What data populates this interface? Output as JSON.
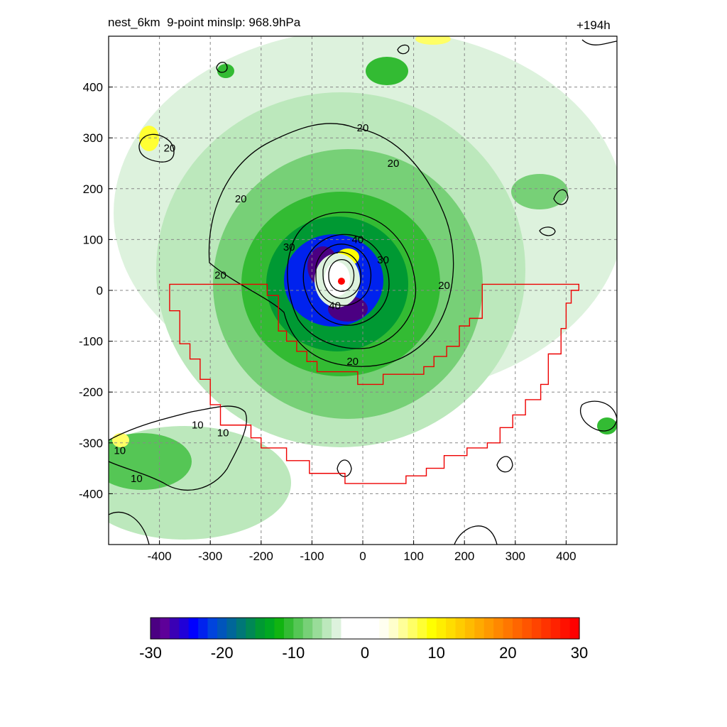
{
  "chart_data": {
    "type": "heatmap",
    "title": "nest_6km  9-point minslp: 968.9hPa",
    "forecast_time": "+194h",
    "xlim": [
      -500,
      500
    ],
    "ylim": [
      -500,
      500
    ],
    "x_ticks": [
      -400,
      -300,
      -200,
      -100,
      0,
      100,
      200,
      300,
      400
    ],
    "y_ticks": [
      -400,
      -300,
      -200,
      -100,
      0,
      100,
      200,
      300,
      400
    ],
    "grid": "dashed",
    "storm_center": [
      -42,
      18
    ],
    "contour_labels": [
      {
        "text": "20",
        "x": 0,
        "y": 320
      },
      {
        "text": "20",
        "x": 60,
        "y": 250
      },
      {
        "text": "20",
        "x": -380,
        "y": 280
      },
      {
        "text": "20",
        "x": -240,
        "y": 180
      },
      {
        "text": "20",
        "x": -280,
        "y": 30
      },
      {
        "text": "20",
        "x": 160,
        "y": 10
      },
      {
        "text": "20",
        "x": -20,
        "y": -140
      },
      {
        "text": "30",
        "x": -145,
        "y": 85
      },
      {
        "text": "30",
        "x": 40,
        "y": 60
      },
      {
        "text": "40",
        "x": -10,
        "y": 100
      },
      {
        "text": "40",
        "x": -55,
        "y": -30
      },
      {
        "text": "10",
        "x": -325,
        "y": -265
      },
      {
        "text": "10",
        "x": -275,
        "y": -280
      },
      {
        "text": "10",
        "x": -445,
        "y": -370
      },
      {
        "text": "10",
        "x": -478,
        "y": -315
      }
    ],
    "colorbar": {
      "range": [
        -30,
        30
      ],
      "tick_labels": [
        "-30",
        "-20",
        "-10",
        "0",
        "10",
        "20",
        "30"
      ],
      "colors": [
        "#4b0082",
        "#5e0099",
        "#3a00b5",
        "#2000d8",
        "#0000ff",
        "#0022ee",
        "#0044dd",
        "#0055bb",
        "#006699",
        "#007777",
        "#008855",
        "#009933",
        "#00a822",
        "#11b411",
        "#33bb33",
        "#55c655",
        "#77d077",
        "#99dc99",
        "#bce8bc",
        "#ddf2dd",
        "#ffffff",
        "#ffffff",
        "#ffffff",
        "#ffffff",
        "#fffff0",
        "#ffffcc",
        "#ffff99",
        "#ffff66",
        "#ffff33",
        "#ffff00",
        "#ffee00",
        "#ffdd00",
        "#ffcc00",
        "#ffbb00",
        "#ffaa00",
        "#ff9900",
        "#ff8800",
        "#ff7700",
        "#ff6600",
        "#ff5500",
        "#ff4400",
        "#ff3300",
        "#ff2200",
        "#ff1100",
        "#ff0000"
      ]
    }
  }
}
